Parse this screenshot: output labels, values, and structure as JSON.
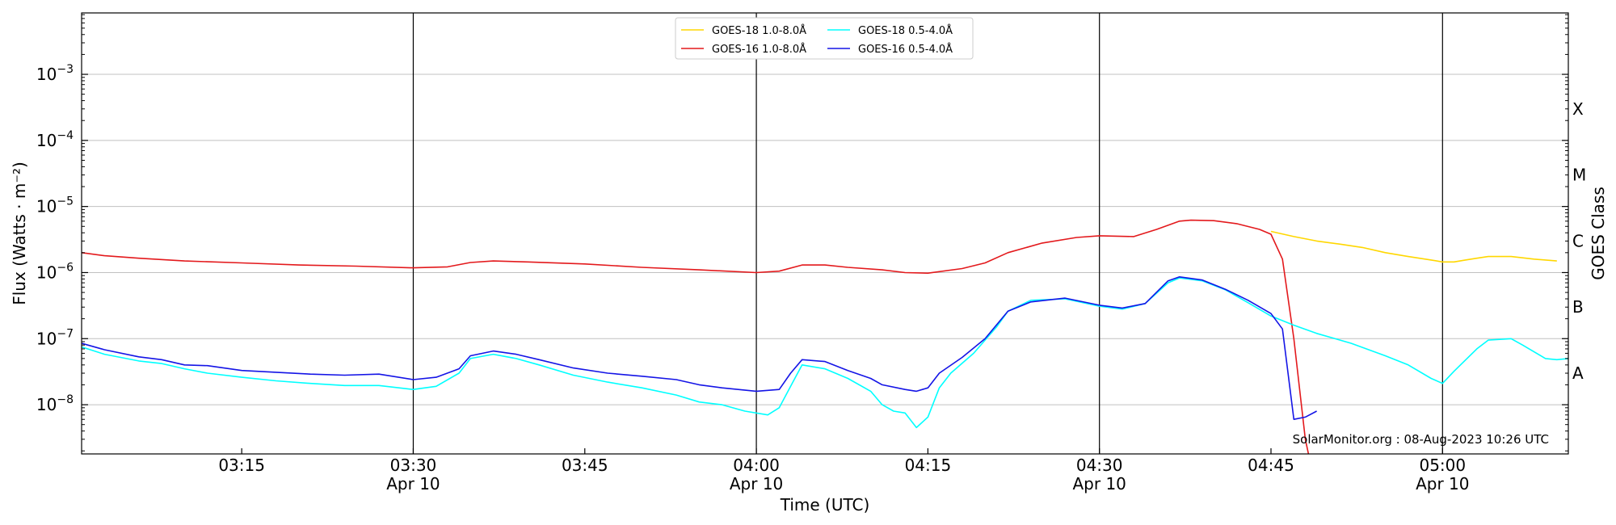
{
  "chart_data": {
    "type": "line",
    "xlabel": "Time (UTC)",
    "ylabel": "Flux (Watts · m⁻²)",
    "y2label": "GOES Class",
    "y_scale": "log",
    "ylim": [
      1.8e-09,
      0.0085
    ],
    "xlim": [
      "03:01",
      "05:11"
    ],
    "date": "Apr 10",
    "credit": "SolarMonitor.org : 08-Aug-2023 10:26 UTC",
    "grid": "horizontal at decades",
    "legend_position": "top-center",
    "x_ticks": [
      {
        "time": "03:15",
        "label": "03:15",
        "date": ""
      },
      {
        "time": "03:30",
        "label": "03:30",
        "date": "Apr 10"
      },
      {
        "time": "03:45",
        "label": "03:45",
        "date": ""
      },
      {
        "time": "04:00",
        "label": "04:00",
        "date": "Apr 10"
      },
      {
        "time": "04:15",
        "label": "04:15",
        "date": ""
      },
      {
        "time": "04:30",
        "label": "04:30",
        "date": "Apr 10"
      },
      {
        "time": "04:45",
        "label": "04:45",
        "date": ""
      },
      {
        "time": "05:00",
        "label": "05:00",
        "date": "Apr 10"
      }
    ],
    "vertical_lines": [
      "03:30",
      "04:00",
      "04:30",
      "05:00"
    ],
    "y_ticks": [
      {
        "value": 1e-08,
        "base": "10",
        "exp": "−8"
      },
      {
        "value": 1e-07,
        "base": "10",
        "exp": "−7"
      },
      {
        "value": 1e-06,
        "base": "10",
        "exp": "−6"
      },
      {
        "value": 1e-05,
        "base": "10",
        "exp": "−5"
      },
      {
        "value": 0.0001,
        "base": "10",
        "exp": "−4"
      },
      {
        "value": 0.001,
        "base": "10",
        "exp": "−3"
      }
    ],
    "goes_classes": [
      {
        "label": "A",
        "value": 3e-08
      },
      {
        "label": "B",
        "value": 3e-07
      },
      {
        "label": "C",
        "value": 3e-06
      },
      {
        "label": "M",
        "value": 3e-05
      },
      {
        "label": "X",
        "value": 0.0003
      }
    ],
    "series": [
      {
        "name": "GOES-18 1.0-8.0Å",
        "color": "#ffd700",
        "points": [
          [
            "04:45",
            4.2e-06
          ],
          [
            "04:47",
            3.5e-06
          ],
          [
            "04:49",
            3e-06
          ],
          [
            "04:51",
            2.7e-06
          ],
          [
            "04:53",
            2.4e-06
          ],
          [
            "04:55",
            2e-06
          ],
          [
            "04:57",
            1.75e-06
          ],
          [
            "04:59",
            1.55e-06
          ],
          [
            "05:00",
            1.45e-06
          ],
          [
            "05:01",
            1.45e-06
          ],
          [
            "05:02",
            1.55e-06
          ],
          [
            "05:03",
            1.65e-06
          ],
          [
            "05:04",
            1.75e-06
          ],
          [
            "05:06",
            1.75e-06
          ],
          [
            "05:08",
            1.6e-06
          ],
          [
            "05:10",
            1.5e-06
          ]
        ]
      },
      {
        "name": "GOES-16 1.0-8.0Å",
        "color": "#e3191c",
        "points": [
          [
            "03:01",
            2e-06
          ],
          [
            "03:03",
            1.8e-06
          ],
          [
            "03:06",
            1.65e-06
          ],
          [
            "03:10",
            1.5e-06
          ],
          [
            "03:15",
            1.4e-06
          ],
          [
            "03:20",
            1.3e-06
          ],
          [
            "03:25",
            1.25e-06
          ],
          [
            "03:30",
            1.18e-06
          ],
          [
            "03:33",
            1.22e-06
          ],
          [
            "03:35",
            1.42e-06
          ],
          [
            "03:37",
            1.5e-06
          ],
          [
            "03:40",
            1.45e-06
          ],
          [
            "03:45",
            1.35e-06
          ],
          [
            "03:50",
            1.2e-06
          ],
          [
            "03:55",
            1.1e-06
          ],
          [
            "04:00",
            1e-06
          ],
          [
            "04:02",
            1.05e-06
          ],
          [
            "04:04",
            1.3e-06
          ],
          [
            "04:06",
            1.3e-06
          ],
          [
            "04:08",
            1.2e-06
          ],
          [
            "04:11",
            1.1e-06
          ],
          [
            "04:13",
            1e-06
          ],
          [
            "04:15",
            9.8e-07
          ],
          [
            "04:18",
            1.15e-06
          ],
          [
            "04:20",
            1.4e-06
          ],
          [
            "04:22",
            2e-06
          ],
          [
            "04:25",
            2.8e-06
          ],
          [
            "04:28",
            3.4e-06
          ],
          [
            "04:30",
            3.6e-06
          ],
          [
            "04:33",
            3.5e-06
          ],
          [
            "04:35",
            4.5e-06
          ],
          [
            "04:37",
            6e-06
          ],
          [
            "04:38",
            6.2e-06
          ],
          [
            "04:40",
            6.1e-06
          ],
          [
            "04:42",
            5.5e-06
          ],
          [
            "04:44",
            4.5e-06
          ],
          [
            "04:45",
            3.8e-06
          ],
          [
            "04:46",
            1.6e-06
          ],
          [
            "04:47",
            1e-07
          ],
          [
            "04:48",
            3e-09
          ],
          [
            "04:48.5",
            1.2e-09
          ]
        ]
      },
      {
        "name": "GOES-18 0.5-4.0Å",
        "color": "#00ffff",
        "points": [
          [
            "03:01",
            7.5e-08
          ],
          [
            "03:03",
            5.8e-08
          ],
          [
            "03:06",
            4.6e-08
          ],
          [
            "03:08",
            4.2e-08
          ],
          [
            "03:10",
            3.5e-08
          ],
          [
            "03:12",
            3e-08
          ],
          [
            "03:15",
            2.6e-08
          ],
          [
            "03:18",
            2.3e-08
          ],
          [
            "03:21",
            2.1e-08
          ],
          [
            "03:24",
            1.95e-08
          ],
          [
            "03:27",
            1.95e-08
          ],
          [
            "03:30",
            1.7e-08
          ],
          [
            "03:32",
            1.9e-08
          ],
          [
            "03:34",
            3e-08
          ],
          [
            "03:35",
            5e-08
          ],
          [
            "03:37",
            5.8e-08
          ],
          [
            "03:39",
            5e-08
          ],
          [
            "03:41",
            4e-08
          ],
          [
            "03:44",
            2.8e-08
          ],
          [
            "03:47",
            2.2e-08
          ],
          [
            "03:50",
            1.8e-08
          ],
          [
            "03:53",
            1.4e-08
          ],
          [
            "03:55",
            1.1e-08
          ],
          [
            "03:57",
            1e-08
          ],
          [
            "03:59",
            8e-09
          ],
          [
            "04:01",
            7e-09
          ],
          [
            "04:02",
            9e-09
          ],
          [
            "04:03",
            1.9e-08
          ],
          [
            "04:04",
            4e-08
          ],
          [
            "04:06",
            3.5e-08
          ],
          [
            "04:08",
            2.5e-08
          ],
          [
            "04:10",
            1.6e-08
          ],
          [
            "04:11",
            1e-08
          ],
          [
            "04:12",
            8e-09
          ],
          [
            "04:13",
            7.5e-09
          ],
          [
            "04:14",
            4.5e-09
          ],
          [
            "04:15",
            6.5e-09
          ],
          [
            "04:16",
            1.8e-08
          ],
          [
            "04:17",
            3e-08
          ],
          [
            "04:19",
            6e-08
          ],
          [
            "04:21",
            1.5e-07
          ],
          [
            "04:22",
            2.6e-07
          ],
          [
            "04:24",
            3.8e-07
          ],
          [
            "04:27",
            4e-07
          ],
          [
            "04:30",
            3.1e-07
          ],
          [
            "04:32",
            2.8e-07
          ],
          [
            "04:34",
            3.4e-07
          ],
          [
            "04:36",
            7e-07
          ],
          [
            "04:37",
            8.3e-07
          ],
          [
            "04:39",
            7.5e-07
          ],
          [
            "04:41",
            5.5e-07
          ],
          [
            "04:43",
            3.5e-07
          ],
          [
            "04:45",
            2.2e-07
          ],
          [
            "04:47",
            1.6e-07
          ],
          [
            "04:49",
            1.2e-07
          ],
          [
            "04:52",
            8.5e-08
          ],
          [
            "04:55",
            5.5e-08
          ],
          [
            "04:57",
            4e-08
          ],
          [
            "04:59",
            2.5e-08
          ],
          [
            "05:00",
            2.1e-08
          ],
          [
            "05:01",
            3.2e-08
          ],
          [
            "05:03",
            7e-08
          ],
          [
            "05:04",
            9.5e-08
          ],
          [
            "05:06",
            1e-07
          ],
          [
            "05:07",
            8e-08
          ],
          [
            "05:09",
            5e-08
          ],
          [
            "05:10",
            4.8e-08
          ],
          [
            "05:11",
            5e-08
          ]
        ]
      },
      {
        "name": "GOES-16 0.5-4.0Å",
        "color": "#1414e6",
        "points": [
          [
            "03:01",
            8.5e-08
          ],
          [
            "03:03",
            6.8e-08
          ],
          [
            "03:06",
            5.3e-08
          ],
          [
            "03:08",
            4.8e-08
          ],
          [
            "03:10",
            4e-08
          ],
          [
            "03:12",
            3.9e-08
          ],
          [
            "03:15",
            3.3e-08
          ],
          [
            "03:18",
            3.1e-08
          ],
          [
            "03:21",
            2.9e-08
          ],
          [
            "03:24",
            2.8e-08
          ],
          [
            "03:27",
            2.9e-08
          ],
          [
            "03:30",
            2.4e-08
          ],
          [
            "03:32",
            2.6e-08
          ],
          [
            "03:34",
            3.5e-08
          ],
          [
            "03:35",
            5.5e-08
          ],
          [
            "03:37",
            6.5e-08
          ],
          [
            "03:39",
            5.8e-08
          ],
          [
            "03:41",
            4.8e-08
          ],
          [
            "03:44",
            3.6e-08
          ],
          [
            "03:47",
            3e-08
          ],
          [
            "03:50",
            2.7e-08
          ],
          [
            "03:53",
            2.4e-08
          ],
          [
            "03:55",
            2e-08
          ],
          [
            "03:57",
            1.8e-08
          ],
          [
            "04:00",
            1.6e-08
          ],
          [
            "04:02",
            1.7e-08
          ],
          [
            "04:03",
            3e-08
          ],
          [
            "04:04",
            4.8e-08
          ],
          [
            "04:06",
            4.5e-08
          ],
          [
            "04:08",
            3.3e-08
          ],
          [
            "04:10",
            2.5e-08
          ],
          [
            "04:11",
            2e-08
          ],
          [
            "04:13",
            1.7e-08
          ],
          [
            "04:14",
            1.6e-08
          ],
          [
            "04:15",
            1.8e-08
          ],
          [
            "04:16",
            3e-08
          ],
          [
            "04:18",
            5.2e-08
          ],
          [
            "04:20",
            1e-07
          ],
          [
            "04:22",
            2.6e-07
          ],
          [
            "04:24",
            3.6e-07
          ],
          [
            "04:27",
            4.1e-07
          ],
          [
            "04:30",
            3.2e-07
          ],
          [
            "04:32",
            2.9e-07
          ],
          [
            "04:34",
            3.4e-07
          ],
          [
            "04:36",
            7.5e-07
          ],
          [
            "04:37",
            8.6e-07
          ],
          [
            "04:39",
            7.7e-07
          ],
          [
            "04:41",
            5.6e-07
          ],
          [
            "04:43",
            3.8e-07
          ],
          [
            "04:45",
            2.4e-07
          ],
          [
            "04:46",
            1.4e-07
          ],
          [
            "04:47",
            6e-09
          ],
          [
            "04:48",
            6.5e-09
          ],
          [
            "04:49",
            8e-09
          ]
        ]
      }
    ]
  }
}
